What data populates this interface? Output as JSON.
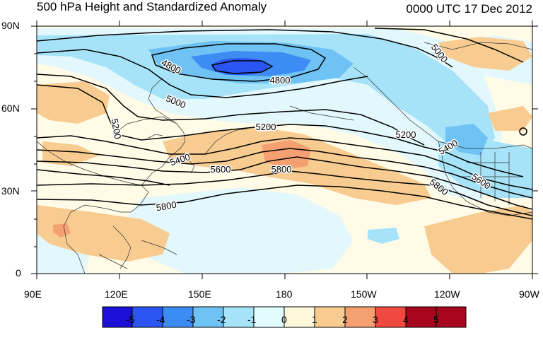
{
  "title": "500 hPa Height and Standardized Anomaly",
  "datetime": "0000 UTC 17 Dec 2012",
  "lat_labels": [
    "90N",
    "60N",
    "30N",
    "0"
  ],
  "lon_labels": [
    "90E",
    "120E",
    "150E",
    "180",
    "150W",
    "120W",
    "90W"
  ],
  "contour_labels": [
    "4800",
    "4800",
    "5000",
    "5000",
    "5200",
    "5200",
    "5200",
    "5400",
    "5400",
    "5600",
    "5600",
    "5800",
    "5800",
    "5800"
  ],
  "colorbar": {
    "labels": [
      "-5",
      "-4",
      "-3",
      "-2",
      "-1",
      "0",
      "1",
      "2",
      "3",
      "4",
      "5"
    ],
    "colors": [
      "#1c10d8",
      "#2a55f2",
      "#3d8cf4",
      "#6ec3f4",
      "#a6e3f8",
      "#e2fbfd",
      "#fdf7dc",
      "#f8cc90",
      "#f5a070",
      "#f04a40",
      "#a8051e"
    ]
  }
}
